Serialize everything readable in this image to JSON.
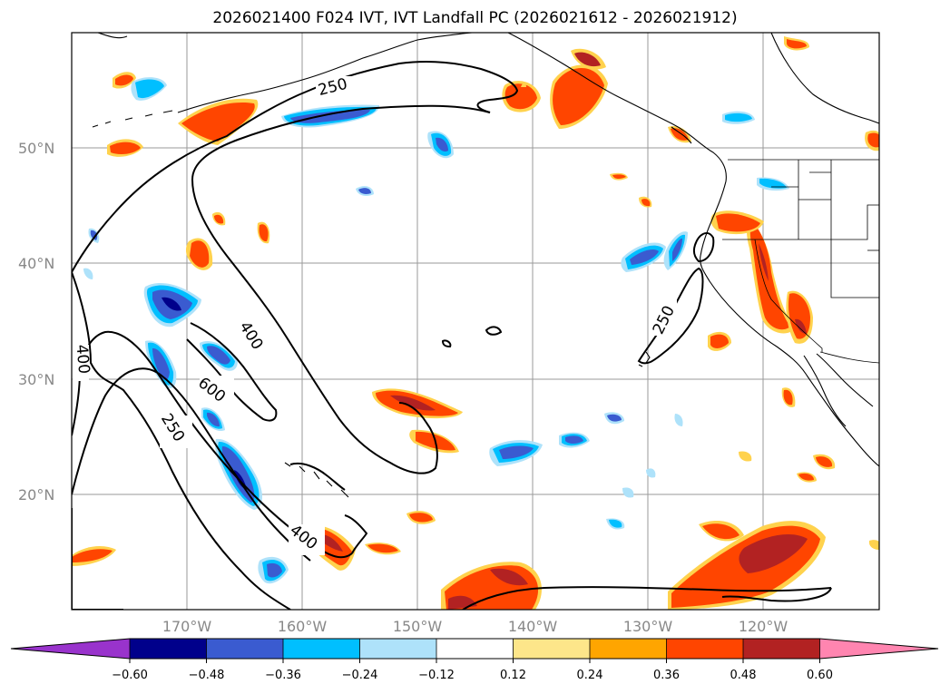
{
  "title": "2026021400 F024 IVT, IVT Landfall PC (2026021612 - 2026021912)",
  "lat_labels": [
    "50°N",
    "40°N",
    "30°N",
    "20°N"
  ],
  "lon_labels": [
    "170°W",
    "160°W",
    "150°W",
    "140°W",
    "130°W",
    "120°W"
  ],
  "contour_labels": [
    "250",
    "400",
    "400",
    "600",
    "250",
    "400",
    "250"
  ],
  "colorbar": {
    "tick_labels": [
      "−0.60",
      "−0.48",
      "−0.36",
      "−0.24",
      "−0.12",
      "0.12",
      "0.24",
      "0.36",
      "0.48",
      "0.60"
    ],
    "colors": [
      "#9933cc",
      "#00008b",
      "#3a5bd0",
      "#00bfff",
      "#aee2fa",
      "#ffffff",
      "#fde68a",
      "#ffa500",
      "#ff4500",
      "#b22222",
      "#ff85b0"
    ]
  }
}
